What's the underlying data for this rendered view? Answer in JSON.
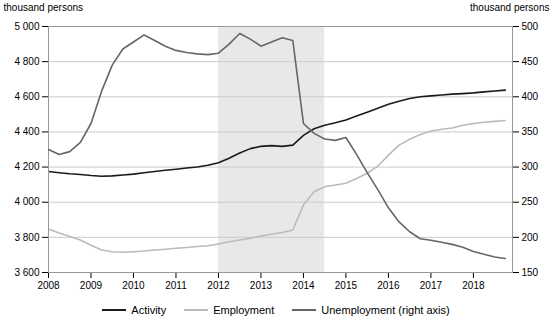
{
  "chart_data": {
    "type": "line",
    "ylabel": "thousand persons",
    "y2label": "thousand persons",
    "x": [
      2008.0,
      2008.25,
      2008.5,
      2008.75,
      2009.0,
      2009.25,
      2009.5,
      2009.75,
      2010.0,
      2010.25,
      2010.5,
      2010.75,
      2011.0,
      2011.25,
      2011.5,
      2011.75,
      2012.0,
      2012.25,
      2012.5,
      2012.75,
      2013.0,
      2013.25,
      2013.5,
      2013.75,
      2014.0,
      2014.25,
      2014.5,
      2014.75,
      2015.0,
      2015.25,
      2015.5,
      2015.75,
      2016.0,
      2016.25,
      2016.5,
      2016.75,
      2017.0,
      2017.25,
      2017.5,
      2017.75,
      2018.0,
      2018.25,
      2018.5,
      2018.75
    ],
    "xlim": [
      2008.0,
      2018.92
    ],
    "xticks": [
      2008,
      2009,
      2010,
      2011,
      2012,
      2013,
      2014,
      2015,
      2016,
      2017,
      2018
    ],
    "ylim": [
      3600,
      5000
    ],
    "yticks": [
      {
        "value": 3600,
        "label": "3 600"
      },
      {
        "value": 3800,
        "label": "3 800"
      },
      {
        "value": 4000,
        "label": "4 000"
      },
      {
        "value": 4200,
        "label": "4 200"
      },
      {
        "value": 4400,
        "label": "4 400"
      },
      {
        "value": 4600,
        "label": "4 600"
      },
      {
        "value": 4800,
        "label": "4 800"
      },
      {
        "value": 5000,
        "label": "5 000"
      }
    ],
    "y2lim": [
      150,
      500
    ],
    "y2ticks": [
      150,
      200,
      250,
      300,
      350,
      400,
      450,
      500
    ],
    "grid": true,
    "legend": "bottom",
    "shade": {
      "x": [
        2012.0,
        2014.5
      ],
      "color": "#e8e8e8"
    },
    "series": [
      {
        "name": "Activity",
        "color": "#1a1a1a",
        "values": [
          4175,
          4168,
          4162,
          4158,
          4152,
          4148,
          4150,
          4155,
          4160,
          4168,
          4175,
          4182,
          4188,
          4195,
          4200,
          4210,
          4225,
          4250,
          4280,
          4305,
          4318,
          4322,
          4318,
          4325,
          4380,
          4418,
          4438,
          4452,
          4468,
          4490,
          4512,
          4535,
          4558,
          4575,
          4590,
          4600,
          4605,
          4610,
          4615,
          4618,
          4622,
          4628,
          4633,
          4638
        ]
      },
      {
        "name": "Employment",
        "color": "#bbbbbb",
        "values": [
          3848,
          3825,
          3805,
          3785,
          3755,
          3728,
          3718,
          3715,
          3718,
          3722,
          3728,
          3732,
          3738,
          3742,
          3748,
          3752,
          3762,
          3775,
          3785,
          3795,
          3808,
          3818,
          3828,
          3842,
          3985,
          4060,
          4088,
          4098,
          4108,
          4135,
          4165,
          4205,
          4268,
          4325,
          4358,
          4385,
          4405,
          4415,
          4422,
          4438,
          4448,
          4455,
          4460,
          4465
        ]
      },
      {
        "name": "Unemployment (right axis)",
        "color": "#666666",
        "axis": "y2",
        "values": [
          325,
          318,
          322,
          335,
          362,
          408,
          445,
          468,
          478,
          488,
          480,
          472,
          466,
          463,
          461,
          460,
          462,
          475,
          490,
          482,
          472,
          478,
          484,
          480,
          362,
          348,
          340,
          338,
          342,
          318,
          292,
          268,
          242,
          222,
          208,
          198,
          196,
          193,
          190,
          186,
          180,
          176,
          172,
          170
        ]
      }
    ]
  }
}
